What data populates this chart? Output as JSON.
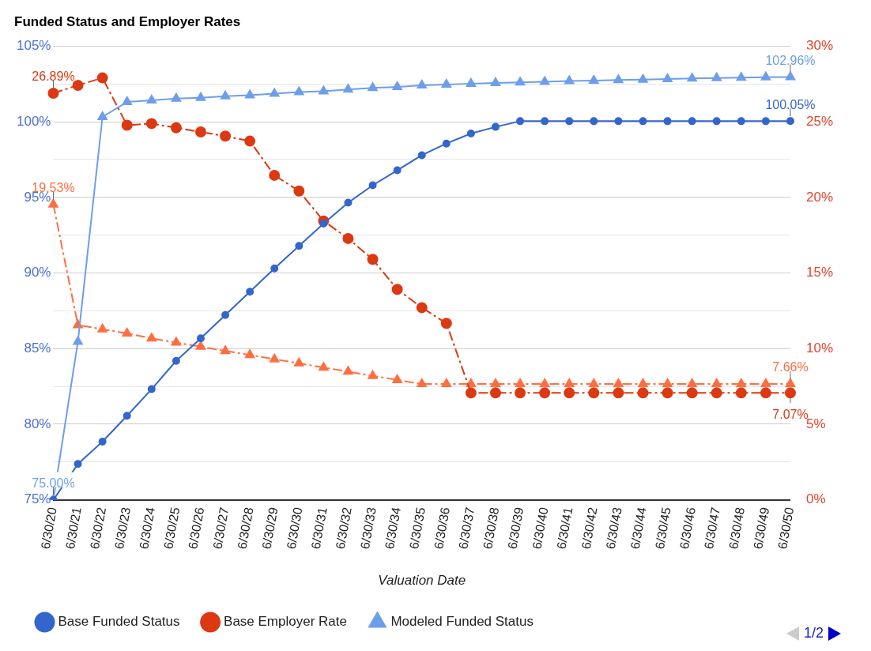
{
  "chart_data": {
    "type": "line",
    "title": "Funded Status and Employer Rates",
    "xlabel": "Valuation Date",
    "categories": [
      "6/30/20",
      "6/30/21",
      "6/30/22",
      "6/30/23",
      "6/30/24",
      "6/30/25",
      "6/30/26",
      "6/30/27",
      "6/30/28",
      "6/30/29",
      "6/30/30",
      "6/30/31",
      "6/30/32",
      "6/30/33",
      "6/30/34",
      "6/30/35",
      "6/30/36",
      "6/30/37",
      "6/30/38",
      "6/30/39",
      "6/30/40",
      "6/30/41",
      "6/30/42",
      "6/30/43",
      "6/30/44",
      "6/30/45",
      "6/30/46",
      "6/30/47",
      "6/30/48",
      "6/30/49",
      "6/30/50"
    ],
    "series": [
      {
        "name": "Base Funded Status",
        "color": "#3366cc",
        "marker": "circle",
        "line_style": "solid",
        "values": [
          75.0,
          77.37,
          78.85,
          80.56,
          82.32,
          84.19,
          85.68,
          87.22,
          88.76,
          90.3,
          91.79,
          93.27,
          94.65,
          95.8,
          96.79,
          97.79,
          98.56,
          99.22,
          99.66,
          100.04,
          100.04,
          100.04,
          100.04,
          100.04,
          100.04,
          100.04,
          100.04,
          100.04,
          100.04,
          100.04,
          100.05
        ],
        "value_labels": [
          null,
          null,
          null,
          null,
          null,
          null,
          null,
          null,
          null,
          null,
          null,
          null,
          null,
          null,
          null,
          null,
          null,
          null,
          null,
          null,
          null,
          null,
          null,
          null,
          null,
          null,
          null,
          null,
          null,
          null,
          "100.05%"
        ]
      },
      {
        "name": "Base Employer Rate",
        "color": "#dc3912",
        "axis": "y2",
        "marker": "circle",
        "line_style": "dashed",
        "values": [
          26.89,
          27.41,
          27.9,
          24.77,
          24.88,
          24.6,
          24.33,
          24.05,
          23.72,
          21.46,
          20.42,
          18.44,
          17.28,
          15.9,
          13.92,
          12.71,
          11.67,
          7.07,
          7.07,
          7.07,
          7.07,
          7.07,
          7.07,
          7.07,
          7.07,
          7.07,
          7.07,
          7.07,
          7.07,
          7.07,
          7.07
        ],
        "value_labels": [
          "26.89%",
          null,
          null,
          null,
          null,
          null,
          null,
          null,
          null,
          null,
          null,
          null,
          null,
          null,
          null,
          null,
          null,
          null,
          null,
          null,
          null,
          null,
          null,
          null,
          null,
          null,
          null,
          null,
          null,
          null,
          "7.07%"
        ]
      },
      {
        "name": "Modeled Funded Status",
        "color": "#6d9eeb",
        "marker": "triangle",
        "line_style": "solid",
        "values": [
          75.0,
          85.46,
          100.32,
          101.31,
          101.42,
          101.53,
          101.58,
          101.69,
          101.75,
          101.86,
          101.97,
          102.02,
          102.13,
          102.24,
          102.3,
          102.41,
          102.46,
          102.52,
          102.57,
          102.61,
          102.65,
          102.69,
          102.72,
          102.76,
          102.79,
          102.83,
          102.86,
          102.89,
          102.92,
          102.94,
          102.96
        ],
        "value_labels": [
          "75.00%",
          null,
          null,
          null,
          null,
          null,
          null,
          null,
          null,
          null,
          null,
          null,
          null,
          null,
          null,
          null,
          null,
          null,
          null,
          null,
          null,
          null,
          null,
          null,
          null,
          null,
          null,
          null,
          null,
          null,
          "102.96%"
        ]
      },
      {
        "color": "#ff6e40",
        "axis": "y2",
        "marker": "triangle",
        "line_style": "dashed",
        "values": [
          19.53,
          11.56,
          11.28,
          11.01,
          10.68,
          10.4,
          10.13,
          9.85,
          9.58,
          9.3,
          9.03,
          8.75,
          8.48,
          8.2,
          7.93,
          7.66,
          7.66,
          7.66,
          7.66,
          7.66,
          7.66,
          7.66,
          7.66,
          7.66,
          7.66,
          7.66,
          7.66,
          7.66,
          7.66,
          7.66,
          7.66
        ],
        "value_labels": [
          "19.53%",
          null,
          null,
          null,
          null,
          null,
          null,
          null,
          null,
          null,
          null,
          null,
          null,
          null,
          null,
          null,
          null,
          null,
          null,
          null,
          null,
          null,
          null,
          null,
          null,
          null,
          null,
          null,
          null,
          null,
          "7.66%"
        ]
      }
    ],
    "ylim": [
      75,
      105
    ],
    "yticks": [
      {
        "value": 75,
        "label": "75%"
      },
      {
        "value": 77.5,
        "label": null
      },
      {
        "value": 80,
        "label": "80%"
      },
      {
        "value": 82.5,
        "label": null
      },
      {
        "value": 85,
        "label": "85%"
      },
      {
        "value": 87.5,
        "label": null
      },
      {
        "value": 90,
        "label": "90%"
      },
      {
        "value": 92.5,
        "label": null
      },
      {
        "value": 95,
        "label": "95%"
      },
      {
        "value": 97.5,
        "label": null
      },
      {
        "value": 100,
        "label": "100%"
      },
      {
        "value": 102.5,
        "label": null
      },
      {
        "value": 105,
        "label": "105%"
      }
    ],
    "y2lim": [
      0,
      30
    ],
    "y2ticks": [
      {
        "value": 0,
        "label": "0%"
      },
      {
        "value": 5,
        "label": "5%"
      },
      {
        "value": 10,
        "label": "10%"
      },
      {
        "value": 15,
        "label": "15%"
      },
      {
        "value": 20,
        "label": "20%"
      },
      {
        "value": 25,
        "label": "25%"
      },
      {
        "value": 30,
        "label": "30%"
      }
    ],
    "grid": "y",
    "legend": "bottom",
    "annotations": [
      "1/2"
    ]
  }
}
